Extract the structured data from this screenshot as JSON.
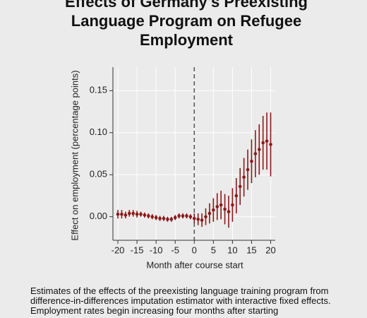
{
  "chart_data": {
    "type": "errorbar",
    "title": "Effects of Germany's Preexisting Language Program on Refugee Employment",
    "x_label": "Month after course start",
    "y_label": "Effect on employment (percentage points)",
    "x": [
      -20,
      -19,
      -18,
      -17,
      -16,
      -15,
      -14,
      -13,
      -12,
      -11,
      -10,
      -9,
      -8,
      -7,
      -6,
      -5,
      -4,
      -3,
      -2,
      -1,
      0,
      1,
      2,
      3,
      4,
      5,
      6,
      7,
      8,
      9,
      10,
      11,
      12,
      13,
      14,
      15,
      16,
      17,
      18,
      19,
      20
    ],
    "series": [
      {
        "color": "#8b1a1a",
        "values": [
          0.003,
          0.003,
          0.002,
          0.004,
          0.004,
          0.003,
          0.003,
          0.002,
          0.001,
          0.0,
          -0.001,
          -0.002,
          -0.002,
          -0.003,
          -0.003,
          -0.001,
          0.001,
          0.001,
          0.001,
          0.0,
          -0.002,
          -0.003,
          -0.004,
          0.0,
          0.004,
          0.008,
          0.012,
          0.014,
          0.009,
          0.006,
          0.014,
          0.025,
          0.036,
          0.047,
          0.056,
          0.066,
          0.075,
          0.08,
          0.088,
          0.09,
          0.086
        ],
        "errors": [
          0.005,
          0.005,
          0.004,
          0.004,
          0.004,
          0.004,
          0.003,
          0.003,
          0.003,
          0.003,
          0.003,
          0.003,
          0.003,
          0.003,
          0.003,
          0.003,
          0.003,
          0.003,
          0.003,
          0.003,
          0.006,
          0.007,
          0.008,
          0.01,
          0.012,
          0.014,
          0.016,
          0.017,
          0.018,
          0.019,
          0.02,
          0.021,
          0.022,
          0.023,
          0.024,
          0.026,
          0.028,
          0.03,
          0.032,
          0.034,
          0.038
        ]
      }
    ],
    "xlim": [
      -21.3,
      21.2
    ],
    "ylim": [
      -0.028,
      0.178
    ],
    "xticks": [
      -20,
      -15,
      -10,
      -5,
      0,
      5,
      10,
      15,
      20
    ],
    "yticks": [
      {
        "value": 0,
        "label": "0.00"
      },
      {
        "value": 0.05,
        "label": "0.05"
      },
      {
        "value": 0.1,
        "label": "0.10"
      },
      {
        "value": 0.15,
        "label": "0.15"
      }
    ],
    "vline": 0,
    "grid": true
  },
  "caption": "Estimates of the effects of the preexisting language training program from difference-in-differences imputation estimator with interactive fixed effects. Employment rates begin increasing four months after starting"
}
